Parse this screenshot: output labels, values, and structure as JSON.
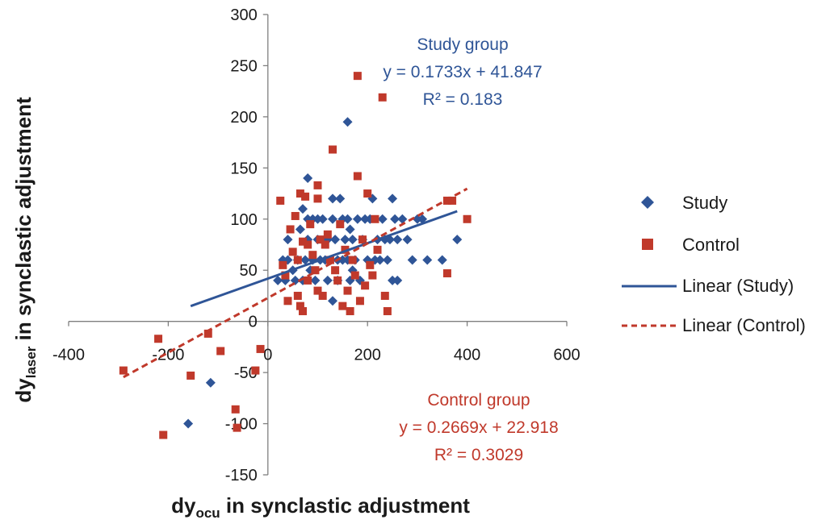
{
  "chart_data": {
    "type": "scatter",
    "xlabel_main": "dy",
    "xlabel_sub": "ocu",
    "xlabel_rest": " in synclastic adjustment",
    "ylabel_main": "dy",
    "ylabel_sub": "laser",
    "ylabel_rest": " in synclastic adjustment",
    "xlim": [
      -400,
      600
    ],
    "ylim": [
      -150,
      300
    ],
    "xticks": [
      -400,
      -200,
      0,
      200,
      400,
      600
    ],
    "yticks": [
      -150,
      -100,
      -50,
      0,
      50,
      100,
      150,
      200,
      250,
      300
    ],
    "grid": false,
    "legend_position": "right",
    "legend": [
      "Study",
      "Control",
      "Linear (Study)",
      "Linear (Control)"
    ],
    "colors": {
      "study": "#2f5597",
      "control": "#c0392b"
    },
    "annotations": {
      "study": [
        "Study group",
        "y = 0.1733x + 41.847",
        "R² = 0.183"
      ],
      "control": [
        "Control group",
        "y = 0.2669x + 22.918",
        "R² = 0.3029"
      ]
    },
    "series": [
      {
        "name": "Study",
        "marker": "diamond",
        "points": [
          [
            -160,
            -100
          ],
          [
            -115,
            -60
          ],
          [
            20,
            40
          ],
          [
            30,
            60
          ],
          [
            35,
            40
          ],
          [
            40,
            80
          ],
          [
            40,
            60
          ],
          [
            50,
            50
          ],
          [
            55,
            40
          ],
          [
            60,
            60
          ],
          [
            65,
            90
          ],
          [
            70,
            110
          ],
          [
            70,
            40
          ],
          [
            75,
            60
          ],
          [
            80,
            140
          ],
          [
            80,
            100
          ],
          [
            80,
            80
          ],
          [
            85,
            50
          ],
          [
            90,
            100
          ],
          [
            90,
            60
          ],
          [
            95,
            40
          ],
          [
            100,
            100
          ],
          [
            100,
            80
          ],
          [
            105,
            60
          ],
          [
            110,
            100
          ],
          [
            115,
            60
          ],
          [
            120,
            80
          ],
          [
            120,
            40
          ],
          [
            125,
            60
          ],
          [
            130,
            120
          ],
          [
            130,
            100
          ],
          [
            130,
            20
          ],
          [
            135,
            80
          ],
          [
            140,
            60
          ],
          [
            140,
            40
          ],
          [
            145,
            120
          ],
          [
            150,
            100
          ],
          [
            150,
            60
          ],
          [
            155,
            80
          ],
          [
            160,
            195
          ],
          [
            160,
            100
          ],
          [
            160,
            60
          ],
          [
            165,
            90
          ],
          [
            165,
            40
          ],
          [
            170,
            80
          ],
          [
            170,
            50
          ],
          [
            175,
            60
          ],
          [
            180,
            100
          ],
          [
            185,
            40
          ],
          [
            190,
            80
          ],
          [
            195,
            100
          ],
          [
            200,
            60
          ],
          [
            205,
            100
          ],
          [
            210,
            120
          ],
          [
            215,
            60
          ],
          [
            220,
            80
          ],
          [
            225,
            60
          ],
          [
            230,
            100
          ],
          [
            235,
            80
          ],
          [
            240,
            60
          ],
          [
            245,
            80
          ],
          [
            250,
            120
          ],
          [
            250,
            40
          ],
          [
            255,
            100
          ],
          [
            260,
            80
          ],
          [
            260,
            40
          ],
          [
            270,
            100
          ],
          [
            280,
            80
          ],
          [
            290,
            60
          ],
          [
            300,
            100
          ],
          [
            310,
            100
          ],
          [
            320,
            60
          ],
          [
            350,
            60
          ],
          [
            380,
            80
          ]
        ],
        "trend": {
          "slope": 0.1733,
          "intercept": 41.847,
          "x_range": [
            -155,
            380
          ]
        }
      },
      {
        "name": "Control",
        "marker": "square",
        "points": [
          [
            -290,
            -48
          ],
          [
            -220,
            -17
          ],
          [
            -210,
            -111
          ],
          [
            -155,
            -53
          ],
          [
            -120,
            -12
          ],
          [
            -95,
            -29
          ],
          [
            -65,
            -86
          ],
          [
            -62,
            -104
          ],
          [
            -25,
            -48
          ],
          [
            -15,
            -27
          ],
          [
            25,
            118
          ],
          [
            30,
            55
          ],
          [
            35,
            45
          ],
          [
            40,
            20
          ],
          [
            45,
            90
          ],
          [
            50,
            68
          ],
          [
            55,
            103
          ],
          [
            60,
            60
          ],
          [
            60,
            25
          ],
          [
            65,
            125
          ],
          [
            65,
            15
          ],
          [
            70,
            78
          ],
          [
            70,
            10
          ],
          [
            75,
            122
          ],
          [
            80,
            40
          ],
          [
            80,
            75
          ],
          [
            85,
            95
          ],
          [
            90,
            65
          ],
          [
            95,
            50
          ],
          [
            100,
            133
          ],
          [
            100,
            120
          ],
          [
            100,
            30
          ],
          [
            105,
            80
          ],
          [
            110,
            25
          ],
          [
            115,
            75
          ],
          [
            120,
            85
          ],
          [
            125,
            60
          ],
          [
            130,
            168
          ],
          [
            135,
            50
          ],
          [
            140,
            40
          ],
          [
            145,
            95
          ],
          [
            150,
            15
          ],
          [
            155,
            70
          ],
          [
            160,
            30
          ],
          [
            165,
            10
          ],
          [
            170,
            60
          ],
          [
            175,
            45
          ],
          [
            180,
            240
          ],
          [
            180,
            142
          ],
          [
            185,
            20
          ],
          [
            190,
            80
          ],
          [
            195,
            35
          ],
          [
            200,
            125
          ],
          [
            205,
            55
          ],
          [
            210,
            45
          ],
          [
            215,
            100
          ],
          [
            220,
            70
          ],
          [
            230,
            219
          ],
          [
            235,
            25
          ],
          [
            240,
            10
          ],
          [
            360,
            118
          ],
          [
            360,
            47
          ],
          [
            370,
            118
          ],
          [
            400,
            100
          ]
        ],
        "trend": {
          "slope": 0.2669,
          "intercept": 22.918,
          "x_range": [
            -290,
            400
          ]
        }
      }
    ]
  }
}
